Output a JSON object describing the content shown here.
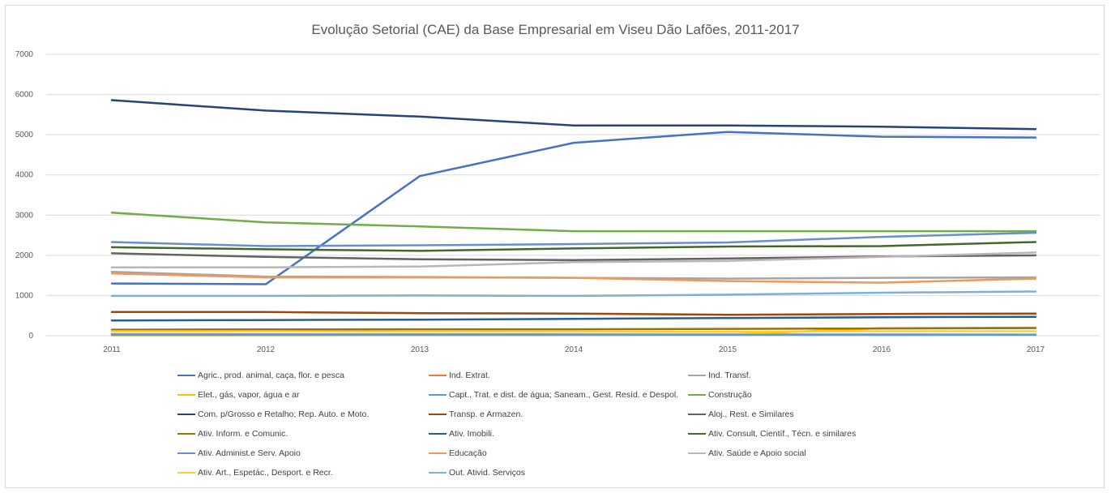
{
  "chart_data": {
    "type": "line",
    "title": "Evolução Setorial (CAE) da Base Empresarial em Viseu Dão Lafões, 2011-2017",
    "xlabel": "",
    "ylabel": "",
    "x": [
      "2011",
      "2012",
      "2013",
      "2014",
      "2015",
      "2016",
      "2017"
    ],
    "ylim": [
      0,
      7000
    ],
    "yticks": [
      0,
      1000,
      2000,
      3000,
      4000,
      5000,
      6000,
      7000
    ],
    "grid": true,
    "legend_position": "bottom",
    "series": [
      {
        "name": "Agric., prod. animal, caça, flor. e pesca",
        "color": "#4472c4",
        "values": [
          1300,
          1280,
          3970,
          4800,
          5070,
          4950,
          4930
        ]
      },
      {
        "name": "Ind. Extrat.",
        "color": "#ed7d31",
        "values": [
          40,
          38,
          37,
          35,
          33,
          30,
          28
        ]
      },
      {
        "name": "Ind. Transf.",
        "color": "#a5a5a5",
        "values": [
          1590,
          1470,
          1460,
          1440,
          1420,
          1440,
          1450
        ]
      },
      {
        "name": "Elet., gás, vapor, água e ar",
        "color": "#ffc000",
        "values": [
          10,
          12,
          15,
          20,
          25,
          190,
          200
        ]
      },
      {
        "name": "Capt., Trat. e dist. de água; Saneam., Gest. Resíd. e Despol.",
        "color": "#5b9bd5",
        "values": [
          20,
          20,
          20,
          20,
          20,
          20,
          20
        ]
      },
      {
        "name": "Construção",
        "color": "#70ad47",
        "values": [
          3060,
          2820,
          2720,
          2600,
          2600,
          2600,
          2600
        ]
      },
      {
        "name": "Com. p/Grosso e Retalho; Rep. Auto. e Moto.",
        "color": "#264478",
        "values": [
          5860,
          5600,
          5450,
          5230,
          5230,
          5200,
          5140
        ]
      },
      {
        "name": "Transp. e Armazen.",
        "color": "#9e480e",
        "values": [
          590,
          590,
          560,
          550,
          520,
          540,
          550
        ]
      },
      {
        "name": "Aloj., Rest. e Similares",
        "color": "#636363",
        "values": [
          2050,
          1960,
          1900,
          1880,
          1920,
          1970,
          2000
        ]
      },
      {
        "name": "Ativ. Inform. e Comunic.",
        "color": "#997300",
        "values": [
          150,
          155,
          160,
          160,
          170,
          180,
          190
        ]
      },
      {
        "name": "Ativ. Imobili.",
        "color": "#255e91",
        "values": [
          380,
          390,
          400,
          420,
          440,
          460,
          470
        ]
      },
      {
        "name": "Ativ. Consult, Científ., Técn. e similares",
        "color": "#43682b",
        "values": [
          2200,
          2150,
          2110,
          2170,
          2220,
          2230,
          2330
        ]
      },
      {
        "name": "Ativ. Administ.e Serv. Apoio",
        "color": "#698ed0",
        "values": [
          2330,
          2230,
          2250,
          2280,
          2320,
          2460,
          2560
        ]
      },
      {
        "name": "Educação",
        "color": "#f1975a",
        "values": [
          1550,
          1450,
          1450,
          1440,
          1360,
          1320,
          1420
        ]
      },
      {
        "name": "Ativ. Saúde e Apoio social",
        "color": "#b7b7b7",
        "values": [
          1700,
          1700,
          1720,
          1830,
          1860,
          1960,
          2070
        ]
      },
      {
        "name": "Ativ. Art., Espetác., Desport. e Recr.",
        "color": "#ffcd33",
        "values": [
          110,
          110,
          100,
          100,
          95,
          110,
          110
        ]
      },
      {
        "name": "Out. Ativid. Serviços",
        "color": "#7cafdd",
        "values": [
          990,
          990,
          1000,
          990,
          1020,
          1070,
          1100
        ]
      }
    ]
  }
}
